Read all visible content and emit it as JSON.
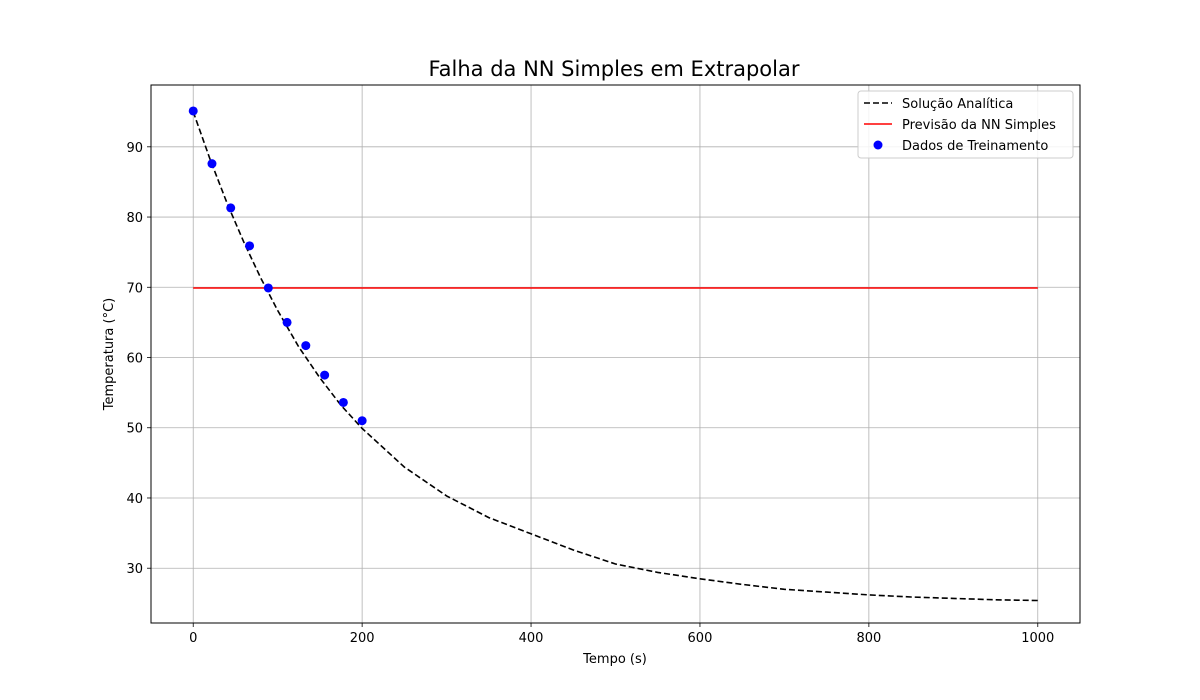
{
  "chart_data": {
    "type": "line",
    "title": "Falha da NN Simples em Extrapolar",
    "xlabel": "Tempo (s)",
    "ylabel": "Temperatura (°C)",
    "xlim": [
      -50,
      1050
    ],
    "ylim": [
      22.2,
      98.8
    ],
    "xticks": [
      0,
      200,
      400,
      600,
      800,
      1000
    ],
    "yticks": [
      30,
      40,
      50,
      60,
      70,
      80,
      90
    ],
    "grid": true,
    "legend_position": "top-right",
    "series": [
      {
        "name": "Solução Analítica",
        "kind": "line",
        "style": "dashed",
        "color": "#000000",
        "x": [
          0,
          20,
          40,
          60,
          80,
          100,
          125,
          150,
          175,
          200,
          250,
          300,
          350,
          400,
          450,
          500,
          550,
          600,
          650,
          700,
          750,
          800,
          850,
          900,
          950,
          1000
        ],
        "y": [
          95.0,
          88.2,
          82.0,
          76.4,
          71.3,
          66.7,
          61.5,
          57.1,
          53.2,
          49.9,
          44.4,
          40.3,
          37.2,
          34.9,
          32.6,
          30.6,
          29.4,
          28.5,
          27.7,
          27.0,
          26.6,
          26.2,
          25.9,
          25.7,
          25.5,
          25.4
        ]
      },
      {
        "name": "Previsão da NN Simples",
        "kind": "line",
        "style": "solid",
        "color": "#ff0000",
        "x": [
          0,
          1000
        ],
        "y": [
          69.9,
          69.9
        ]
      },
      {
        "name": "Dados de Treinamento",
        "kind": "scatter",
        "color": "#0000ff",
        "x": [
          0,
          22.2,
          44.4,
          66.7,
          88.9,
          111.1,
          133.3,
          155.6,
          177.8,
          200
        ],
        "y": [
          95.1,
          87.6,
          81.3,
          75.9,
          69.9,
          65.0,
          61.7,
          57.5,
          53.6,
          51.0
        ]
      }
    ]
  }
}
